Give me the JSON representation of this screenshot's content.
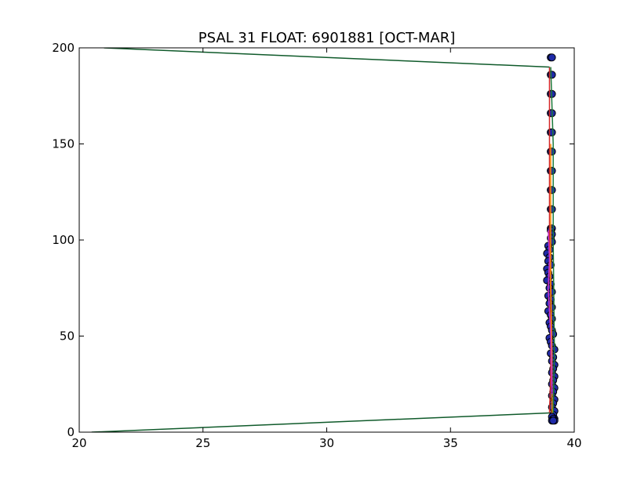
{
  "chart_data": {
    "type": "line",
    "title": "PSAL 31 FLOAT: 6901881 [OCT-MAR]",
    "xlabel": "",
    "ylabel": "",
    "xlim": [
      20,
      40
    ],
    "ylim": [
      0,
      200
    ],
    "x_ticks": [
      20,
      25,
      30,
      35,
      40
    ],
    "y_ticks": [
      0,
      50,
      100,
      150,
      200
    ],
    "grid": false,
    "legend": "none",
    "colors": {
      "marker_fill": "#1f2aa8",
      "marker_edge": "#000000",
      "line_red": "#d62728",
      "line_orange": "#ff8c00",
      "line_green": "#1b7a3a",
      "line_magenta": "#cc33cc",
      "line_darkgreen": "#0f5a2a"
    },
    "series": [
      {
        "kind": "scatter",
        "color_key": "marker_fill",
        "x": [
          39.05,
          39.1,
          39.05,
          39.1,
          39.05,
          39.1,
          39.05,
          39.1,
          39.05,
          39.1,
          39.05,
          39.1,
          39.05,
          39.1,
          39.05,
          39.1,
          39.05,
          39.1,
          39.05,
          39.1,
          39.05,
          39.1,
          39.05,
          39.1,
          38.95,
          39.0,
          38.9,
          39.0,
          38.95,
          39.05,
          38.9,
          38.95,
          39.0,
          38.9,
          39.05,
          39.0,
          39.1,
          38.95,
          39.05,
          39.0,
          39.1,
          38.95,
          39.05,
          39.1,
          39.0,
          39.05,
          39.1,
          39.15,
          39.0,
          39.05,
          39.1,
          39.2,
          39.05,
          39.15,
          39.1,
          39.2,
          39.15,
          39.1,
          39.2,
          39.15,
          39.1,
          39.2,
          39.15,
          39.1,
          39.2,
          39.15,
          39.1,
          39.2,
          39.15,
          39.1,
          39.2,
          39.15,
          39.1,
          39.2,
          39.15
        ],
        "y": [
          195,
          195,
          186,
          186,
          176,
          176,
          166,
          166,
          156,
          156,
          146,
          146,
          136,
          136,
          126,
          126,
          116,
          116,
          106,
          106,
          105,
          103,
          101,
          99,
          97,
          95,
          93,
          91,
          89,
          87,
          85,
          83,
          81,
          79,
          77,
          75,
          73,
          71,
          69,
          67,
          65,
          63,
          61,
          59,
          57,
          55,
          53,
          51,
          49,
          47,
          45,
          43,
          41,
          39,
          37,
          35,
          33,
          31,
          29,
          27,
          25,
          23,
          21,
          19,
          17,
          15,
          13,
          11,
          9,
          8,
          7,
          7,
          6,
          6,
          6
        ]
      },
      {
        "kind": "line",
        "color_key": "line_red",
        "x": [
          39.0,
          39.0,
          39.05,
          39.05,
          39.0
        ],
        "y": [
          190,
          100,
          70,
          30,
          10
        ]
      },
      {
        "kind": "line",
        "color_key": "line_orange",
        "x": [
          39.05,
          39.05,
          39.1,
          39.1
        ],
        "y": [
          150,
          80,
          40,
          10
        ]
      },
      {
        "kind": "line",
        "color_key": "line_magenta",
        "x": [
          38.95,
          39.0,
          38.95,
          39.05,
          39.1
        ],
        "y": [
          105,
          90,
          75,
          50,
          20
        ]
      },
      {
        "kind": "line",
        "color_key": "line_darkgreen",
        "x": [
          21.0,
          39.0
        ],
        "y": [
          200,
          190
        ]
      },
      {
        "kind": "line",
        "color_key": "line_darkgreen",
        "x": [
          20.5,
          39.0
        ],
        "y": [
          0,
          10
        ]
      },
      {
        "kind": "line",
        "color_key": "line_green",
        "x": [
          39.05,
          39.15,
          39.15,
          39.2,
          39.15
        ],
        "y": [
          190,
          150,
          100,
          40,
          10
        ]
      }
    ]
  }
}
